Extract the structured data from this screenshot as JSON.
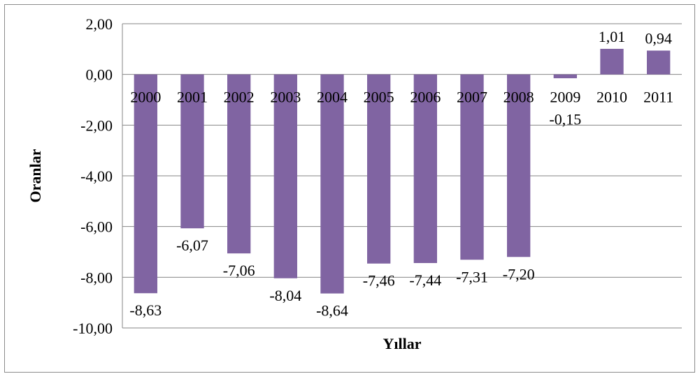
{
  "chart_data": {
    "type": "bar",
    "xlabel": "Yıllar",
    "ylabel": "Oranlar",
    "categories": [
      "2000",
      "2001",
      "2002",
      "2003",
      "2004",
      "2005",
      "2006",
      "2007",
      "2008",
      "2009",
      "2010",
      "2011"
    ],
    "values": [
      -8.63,
      -6.07,
      -7.06,
      -8.04,
      -8.64,
      -7.46,
      -7.44,
      -7.31,
      -7.2,
      -0.15,
      1.01,
      0.94
    ],
    "data_labels": [
      "-8,63",
      "-6,07",
      "-7,06",
      "-8,04",
      "-8,64",
      "-7,46",
      "-7,44",
      "-7,31",
      "-7,20",
      "-0,15",
      "1,01",
      "0,94"
    ],
    "yticks": [
      2,
      0,
      -2,
      -4,
      -6,
      -8,
      -10
    ],
    "ytick_labels": [
      "2,00",
      "0,00",
      "-2,00",
      "-4,00",
      "-6,00",
      "-8,00",
      "-10,00"
    ],
    "ylim": [
      -10,
      2
    ],
    "grid": true,
    "legend": "none",
    "bar_color": "#8064a2",
    "grid_color": "#868686"
  }
}
